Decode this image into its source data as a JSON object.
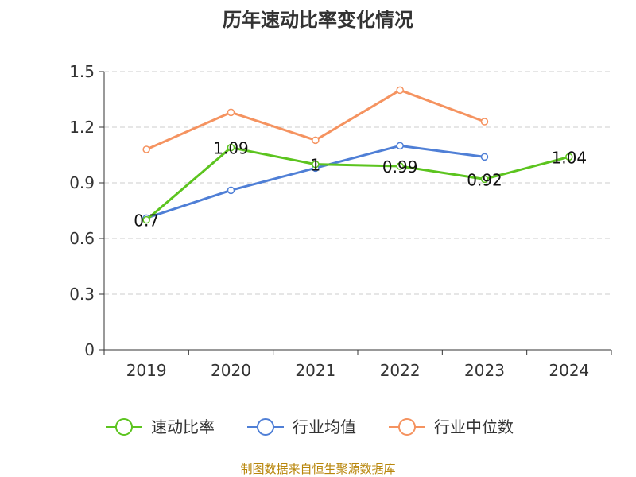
{
  "chart_data": {
    "type": "line",
    "title": "历年速动比率变化情况",
    "categories": [
      "2019",
      "2020",
      "2021",
      "2022",
      "2023",
      "2024"
    ],
    "ylim": [
      0,
      1.5
    ],
    "yticks": [
      "0",
      "0.3",
      "0.6",
      "0.9",
      "1.2",
      "1.5"
    ],
    "ytick_values": [
      0,
      0.3,
      0.6,
      0.9,
      1.2,
      1.5
    ],
    "grid": true,
    "legend_position": "bottom",
    "series": [
      {
        "name": "速动比率",
        "color": "#5cc41f",
        "values": [
          0.7,
          1.09,
          1.0,
          0.99,
          0.92,
          1.04
        ],
        "labels": [
          "0.7",
          "1.09",
          "1",
          "0.99",
          "0.92",
          "1.04"
        ]
      },
      {
        "name": "行业均值",
        "color": "#4f7fd6",
        "values": [
          0.71,
          0.86,
          0.98,
          1.1,
          1.04,
          null
        ]
      },
      {
        "name": "行业中位数",
        "color": "#f59360",
        "values": [
          1.08,
          1.28,
          1.13,
          1.4,
          1.23,
          null
        ]
      }
    ],
    "source": "制图数据来自恒生聚源数据库"
  }
}
